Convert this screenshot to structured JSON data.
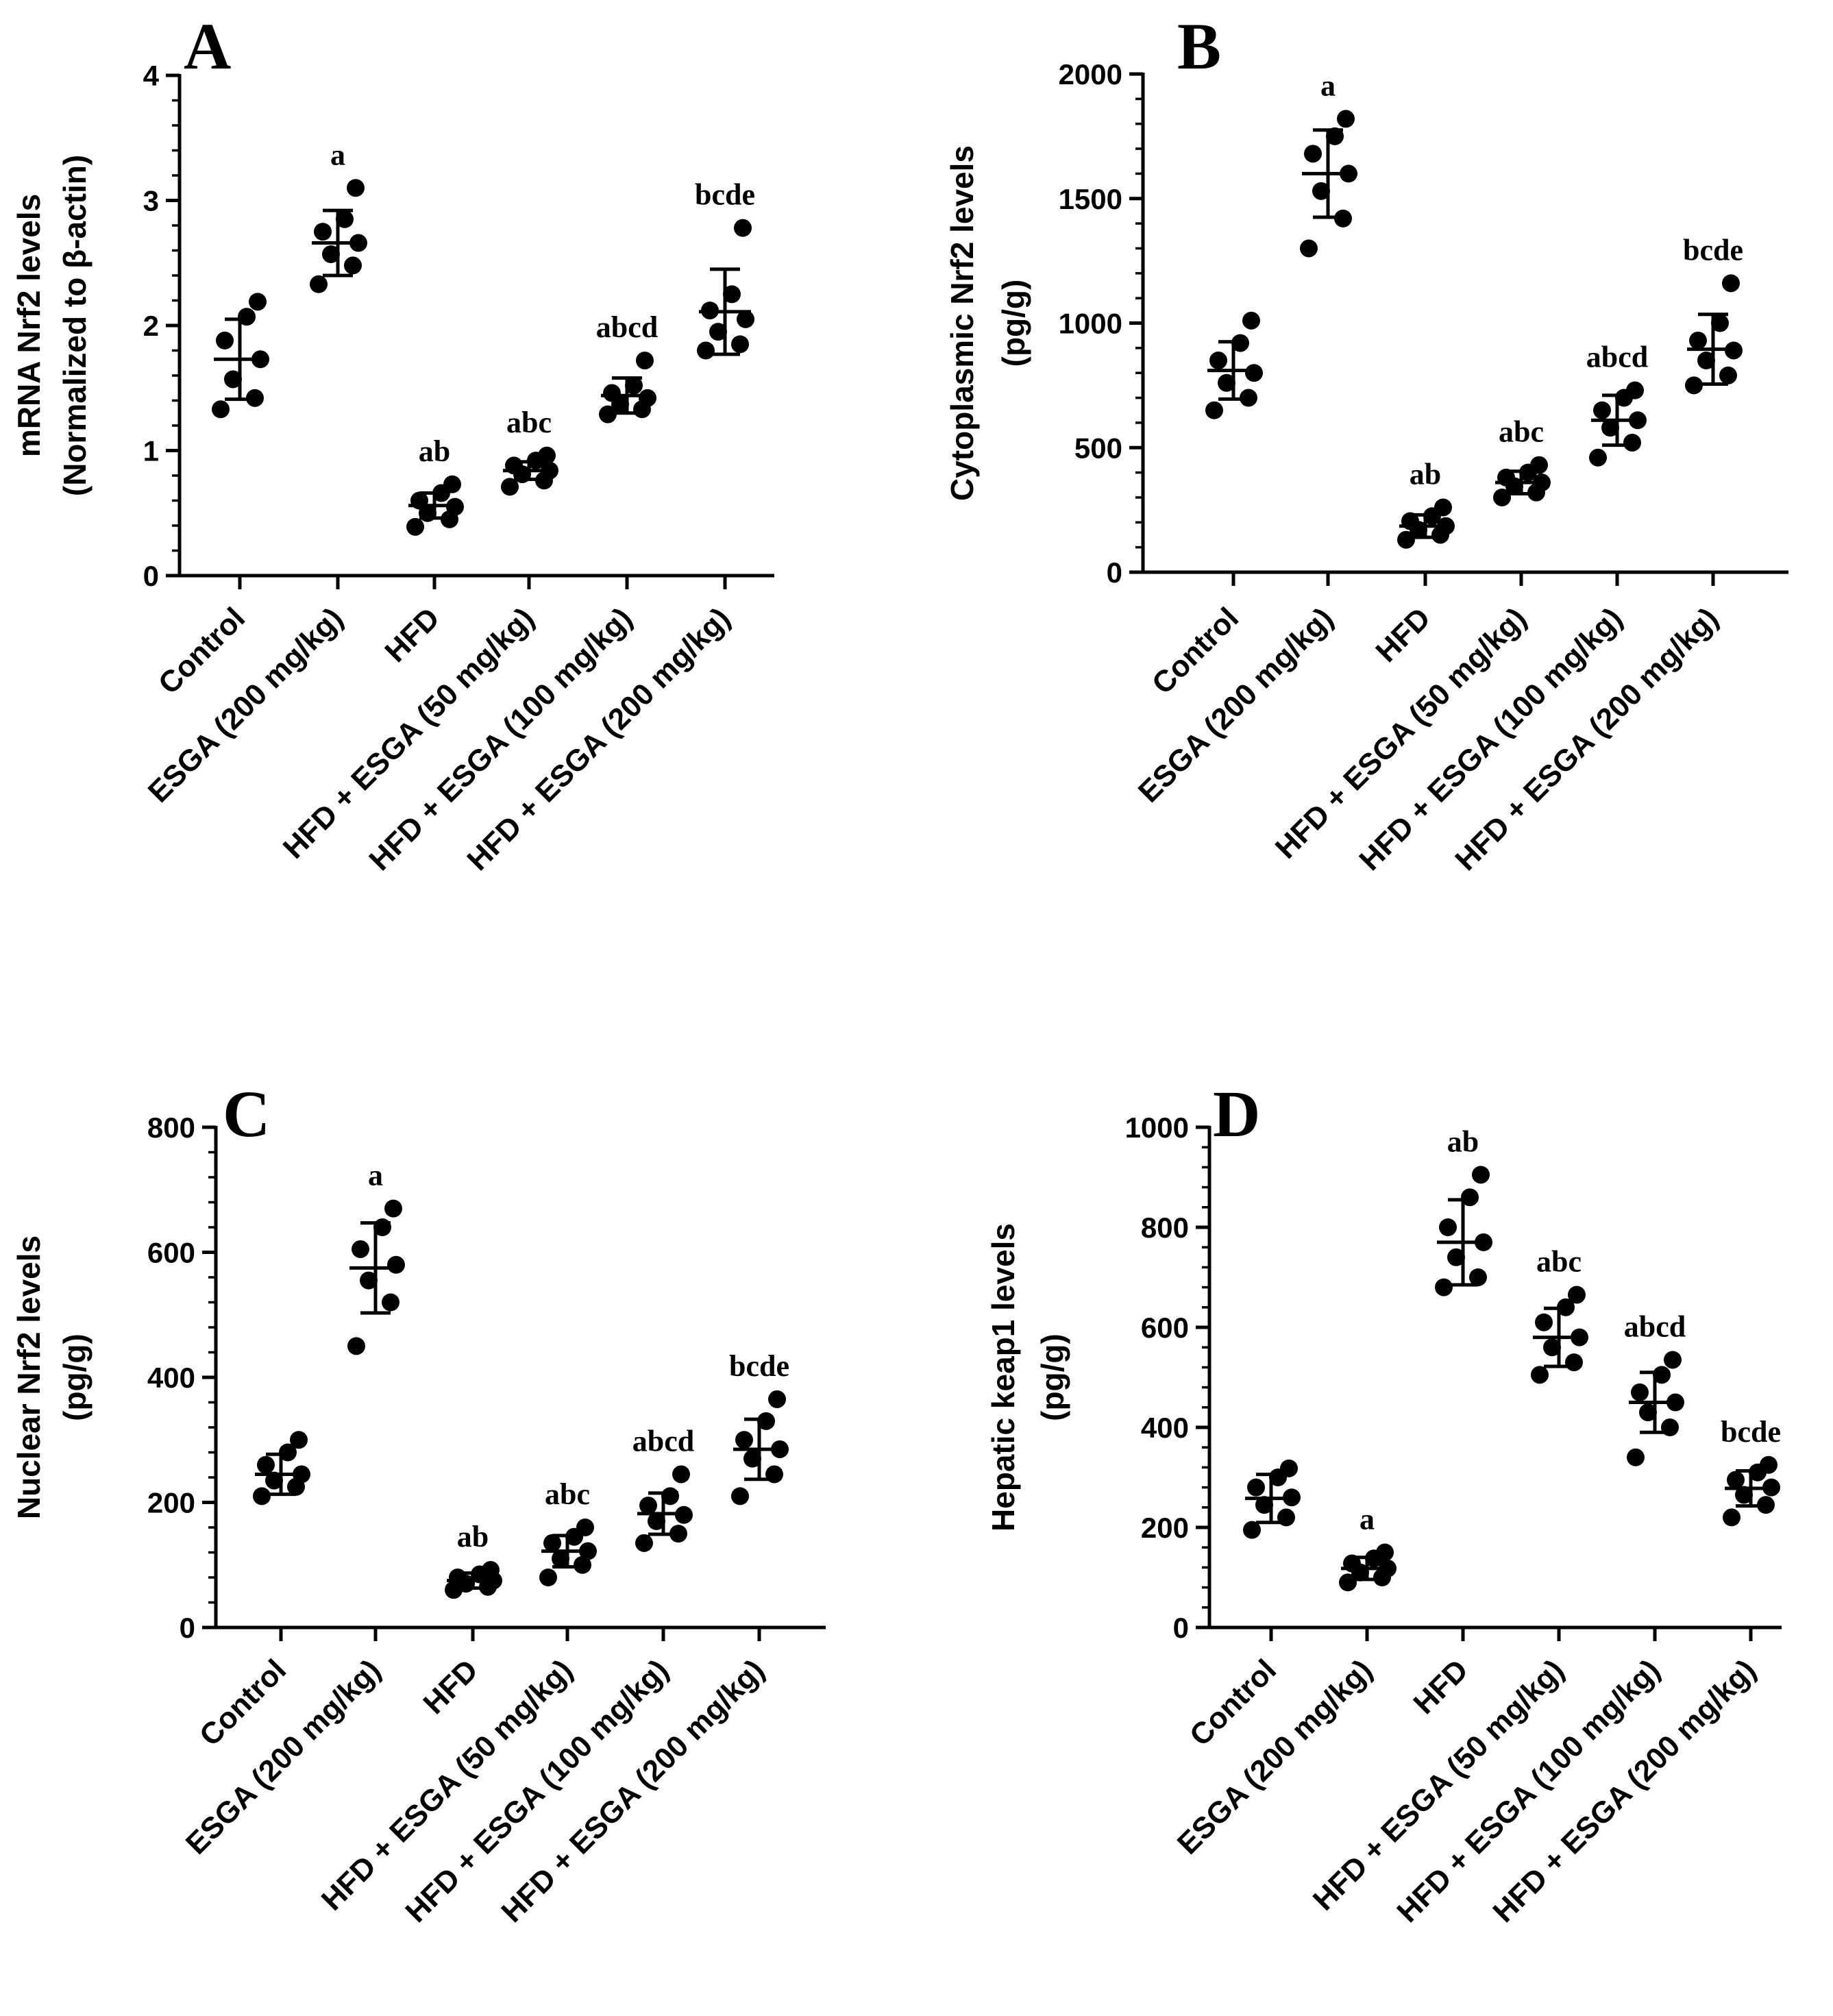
{
  "chart_data": [
    {
      "panel": "A",
      "type": "scatter",
      "ylabel": [
        "mRNA Nrf2 levels",
        "(Normalized to β-actin)"
      ],
      "ylim": [
        0,
        4
      ],
      "yticks": [
        "0",
        "1",
        "2",
        "3",
        "4"
      ],
      "ytick_values": [
        0,
        1,
        2,
        3,
        4
      ],
      "categories": [
        "Control",
        "ESGA (200 mg/kg)",
        "HFD",
        "HFD + ESGA (50 mg/kg)",
        "HFD + ESGA (100 mg/kg)",
        "HFD + ESGA (200 mg/kg)"
      ],
      "groups": [
        {
          "mean": 1.73,
          "sd": 0.32,
          "sig": "",
          "points": [
            1.33,
            1.42,
            1.57,
            1.73,
            1.88,
            2.07,
            2.19
          ]
        },
        {
          "mean": 2.66,
          "sd": 0.26,
          "sig": "a",
          "points": [
            2.33,
            2.48,
            2.57,
            2.66,
            2.75,
            2.85,
            3.1
          ]
        },
        {
          "mean": 0.56,
          "sd": 0.1,
          "sig": "ab",
          "points": [
            0.39,
            0.45,
            0.5,
            0.55,
            0.6,
            0.66,
            0.73
          ]
        },
        {
          "mean": 0.84,
          "sd": 0.07,
          "sig": "abc",
          "points": [
            0.71,
            0.76,
            0.81,
            0.84,
            0.88,
            0.92,
            0.96
          ]
        },
        {
          "mean": 1.44,
          "sd": 0.14,
          "sig": "abcd",
          "points": [
            1.29,
            1.33,
            1.37,
            1.42,
            1.46,
            1.52,
            1.72
          ]
        },
        {
          "mean": 2.11,
          "sd": 0.34,
          "sig": "bcde",
          "points": [
            1.8,
            1.85,
            1.95,
            2.05,
            2.12,
            2.25,
            2.78
          ]
        }
      ]
    },
    {
      "panel": "B",
      "type": "scatter",
      "ylabel": [
        "Cytoplasmic Nrf2 levels",
        "(pg/g)"
      ],
      "ylim": [
        0,
        2000
      ],
      "yticks": [
        "0",
        "500",
        "1000",
        "1500",
        "2000"
      ],
      "ytick_values": [
        0,
        500,
        1000,
        1500,
        2000
      ],
      "categories": [
        "Control",
        "ESGA (200 mg/kg)",
        "HFD",
        "HFD + ESGA (50 mg/kg)",
        "HFD + ESGA (100 mg/kg)",
        "HFD + ESGA (200 mg/kg)"
      ],
      "groups": [
        {
          "mean": 810,
          "sd": 115,
          "sig": "",
          "points": [
            650,
            700,
            760,
            800,
            850,
            920,
            1010
          ]
        },
        {
          "mean": 1600,
          "sd": 175,
          "sig": "a",
          "points": [
            1300,
            1420,
            1530,
            1600,
            1680,
            1750,
            1820
          ]
        },
        {
          "mean": 185,
          "sd": 45,
          "sig": "ab",
          "points": [
            130,
            150,
            170,
            185,
            205,
            225,
            260
          ]
        },
        {
          "mean": 360,
          "sd": 45,
          "sig": "abc",
          "points": [
            300,
            320,
            345,
            360,
            380,
            400,
            430
          ]
        },
        {
          "mean": 610,
          "sd": 100,
          "sig": "abcd",
          "points": [
            460,
            520,
            580,
            610,
            650,
            700,
            730
          ]
        },
        {
          "mean": 895,
          "sd": 140,
          "sig": "bcde",
          "points": [
            750,
            790,
            850,
            890,
            930,
            1000,
            1160
          ]
        }
      ]
    },
    {
      "panel": "C",
      "type": "scatter",
      "ylabel": [
        "Nuclear Nrf2 levels",
        "(pg/g)"
      ],
      "ylim": [
        0,
        800
      ],
      "yticks": [
        "0",
        "200",
        "400",
        "600",
        "800"
      ],
      "ytick_values": [
        0,
        200,
        400,
        600,
        800
      ],
      "categories": [
        "Control",
        "ESGA (200 mg/kg)",
        "HFD",
        "HFD + ESGA (50 mg/kg)",
        "HFD + ESGA (100 mg/kg)",
        "HFD + ESGA (200 mg/kg)"
      ],
      "groups": [
        {
          "mean": 245,
          "sd": 32,
          "sig": "",
          "points": [
            210,
            225,
            235,
            245,
            260,
            280,
            300
          ]
        },
        {
          "mean": 575,
          "sd": 72,
          "sig": "a",
          "points": [
            450,
            520,
            555,
            580,
            605,
            640,
            670
          ]
        },
        {
          "mean": 75,
          "sd": 12,
          "sig": "ab",
          "points": [
            60,
            65,
            70,
            75,
            80,
            85,
            92
          ]
        },
        {
          "mean": 122,
          "sd": 25,
          "sig": "abc",
          "points": [
            80,
            100,
            110,
            122,
            135,
            145,
            160
          ]
        },
        {
          "mean": 182,
          "sd": 33,
          "sig": "abcd",
          "points": [
            135,
            150,
            170,
            180,
            195,
            210,
            245
          ]
        },
        {
          "mean": 285,
          "sd": 48,
          "sig": "bcde",
          "points": [
            210,
            245,
            270,
            285,
            300,
            330,
            365
          ]
        }
      ]
    },
    {
      "panel": "D",
      "type": "scatter",
      "ylabel": [
        "Hepatic keap1 levels",
        "(pg/g)"
      ],
      "ylim": [
        0,
        1000
      ],
      "yticks": [
        "0",
        "200",
        "400",
        "600",
        "800",
        "1000"
      ],
      "ytick_values": [
        0,
        200,
        400,
        600,
        800,
        1000
      ],
      "categories": [
        "Control",
        "ESGA (200 mg/kg)",
        "HFD",
        "HFD + ESGA (50 mg/kg)",
        "HFD + ESGA (100 mg/kg)",
        "HFD + ESGA (200 mg/kg)"
      ],
      "groups": [
        {
          "mean": 258,
          "sd": 48,
          "sig": "",
          "points": [
            195,
            220,
            245,
            260,
            280,
            300,
            318
          ]
        },
        {
          "mean": 118,
          "sd": 22,
          "sig": "a",
          "points": [
            90,
            100,
            110,
            118,
            128,
            138,
            150
          ]
        },
        {
          "mean": 770,
          "sd": 85,
          "sig": "ab",
          "points": [
            680,
            700,
            740,
            770,
            800,
            860,
            905
          ]
        },
        {
          "mean": 580,
          "sd": 58,
          "sig": "abc",
          "points": [
            505,
            530,
            560,
            580,
            610,
            640,
            665
          ]
        },
        {
          "mean": 450,
          "sd": 60,
          "sig": "abcd",
          "points": [
            340,
            400,
            430,
            450,
            470,
            505,
            535
          ]
        },
        {
          "mean": 278,
          "sd": 35,
          "sig": "bcde",
          "points": [
            220,
            245,
            265,
            280,
            295,
            310,
            325
          ]
        }
      ]
    }
  ]
}
